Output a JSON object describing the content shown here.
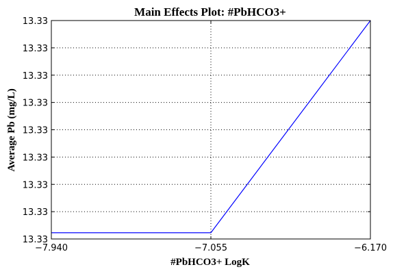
{
  "chart_data": {
    "type": "line",
    "title": "Main Effects Plot: #PbHCO3+",
    "xlabel": "#PbHCO3+ LogK",
    "ylabel": "Average Pb (mg/L)",
    "x_ticks": [
      "−7.940",
      "−7.055",
      "−6.170"
    ],
    "y_ticks": [
      "13.33",
      "13.33",
      "13.33",
      "13.33",
      "13.33",
      "13.33",
      "13.33",
      "13.33",
      "13.33"
    ],
    "x": [
      -7.94,
      -7.055,
      -6.17
    ],
    "y": [
      13.33252,
      13.33252,
      13.3332
    ],
    "xlim": [
      -7.94,
      -6.17
    ],
    "ylim": [
      13.3325,
      13.3332
    ],
    "grid": true,
    "line_color": "#0000ff"
  }
}
